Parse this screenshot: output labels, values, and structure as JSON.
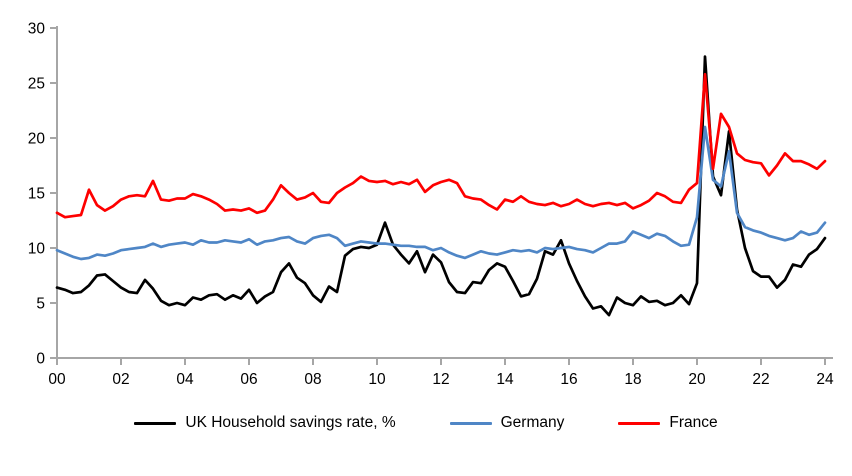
{
  "chart_data": {
    "type": "line",
    "title": "",
    "frequency": "quarterly",
    "x_start_label": "2000 Q1",
    "x_end_label": "2024 Q1",
    "x_axis": {
      "tick_labels": [
        "00",
        "02",
        "04",
        "06",
        "08",
        "10",
        "12",
        "14",
        "16",
        "18",
        "20",
        "22",
        "24"
      ],
      "tick_indices": [
        0,
        8,
        16,
        24,
        32,
        40,
        48,
        56,
        64,
        72,
        80,
        88,
        96
      ]
    },
    "y_axis": {
      "ticks": [
        0,
        5,
        10,
        15,
        20,
        25,
        30
      ],
      "min": 0,
      "max": 30
    },
    "grid": false,
    "legend_position": "bottom",
    "axis_color": "#a6a6a6",
    "label_color": "#000000",
    "series": [
      {
        "name": "UK Household savings rate, %",
        "color": "#000000",
        "values": [
          6.4,
          6.2,
          5.9,
          6.0,
          6.6,
          7.5,
          7.6,
          7.0,
          6.4,
          6.0,
          5.9,
          7.1,
          6.3,
          5.2,
          4.8,
          5.0,
          4.8,
          5.5,
          5.3,
          5.7,
          5.8,
          5.3,
          5.7,
          5.4,
          6.2,
          5.0,
          5.6,
          6.0,
          7.8,
          8.6,
          7.3,
          6.8,
          5.7,
          5.1,
          6.5,
          6.0,
          9.3,
          9.9,
          10.1,
          10.0,
          10.3,
          12.3,
          10.3,
          9.4,
          8.6,
          9.7,
          7.8,
          9.4,
          8.7,
          6.9,
          6.0,
          5.9,
          6.9,
          6.8,
          8.0,
          8.6,
          8.3,
          7.0,
          5.6,
          5.8,
          7.2,
          9.7,
          9.4,
          10.7,
          8.6,
          7.0,
          5.6,
          4.5,
          4.7,
          3.9,
          5.5,
          5.0,
          4.8,
          5.6,
          5.1,
          5.2,
          4.8,
          5.0,
          5.7,
          4.9,
          6.8,
          27.4,
          16.5,
          14.8,
          20.6,
          13.5,
          10.0,
          7.9,
          7.4,
          7.4,
          6.4,
          7.1,
          8.5,
          8.3,
          9.4,
          9.9,
          10.9
        ]
      },
      {
        "name": "Germany",
        "color": "#4f86c6",
        "values": [
          9.8,
          9.5,
          9.2,
          9.0,
          9.1,
          9.4,
          9.3,
          9.5,
          9.8,
          9.9,
          10.0,
          10.1,
          10.4,
          10.1,
          10.3,
          10.4,
          10.5,
          10.3,
          10.7,
          10.5,
          10.5,
          10.7,
          10.6,
          10.5,
          10.8,
          10.3,
          10.6,
          10.7,
          10.9,
          11.0,
          10.6,
          10.4,
          10.9,
          11.1,
          11.2,
          10.9,
          10.2,
          10.4,
          10.6,
          10.5,
          10.4,
          10.4,
          10.3,
          10.2,
          10.2,
          10.1,
          10.1,
          9.8,
          10.0,
          9.6,
          9.3,
          9.1,
          9.4,
          9.7,
          9.5,
          9.4,
          9.6,
          9.8,
          9.7,
          9.8,
          9.6,
          10.0,
          9.9,
          10.0,
          10.1,
          9.9,
          9.8,
          9.6,
          10.0,
          10.4,
          10.4,
          10.6,
          11.5,
          11.2,
          10.9,
          11.3,
          11.1,
          10.6,
          10.2,
          10.3,
          12.8,
          21.0,
          16.2,
          15.6,
          18.8,
          13.2,
          11.9,
          11.6,
          11.4,
          11.1,
          10.9,
          10.7,
          10.9,
          11.5,
          11.2,
          11.4,
          12.3
        ]
      },
      {
        "name": "France",
        "color": "#fe0000",
        "values": [
          13.2,
          12.8,
          12.9,
          13.0,
          15.3,
          13.9,
          13.4,
          13.8,
          14.4,
          14.7,
          14.8,
          14.7,
          16.1,
          14.4,
          14.3,
          14.5,
          14.5,
          14.9,
          14.7,
          14.4,
          14.0,
          13.4,
          13.5,
          13.4,
          13.6,
          13.2,
          13.4,
          14.4,
          15.7,
          15.0,
          14.4,
          14.6,
          15.0,
          14.2,
          14.1,
          15.0,
          15.5,
          15.9,
          16.5,
          16.1,
          16.0,
          16.1,
          15.8,
          16.0,
          15.8,
          16.2,
          15.1,
          15.7,
          16.0,
          16.2,
          15.9,
          14.7,
          14.5,
          14.4,
          13.9,
          13.5,
          14.4,
          14.2,
          14.7,
          14.2,
          14.0,
          13.9,
          14.1,
          13.8,
          14.0,
          14.4,
          14.0,
          13.8,
          14.0,
          14.1,
          13.9,
          14.1,
          13.6,
          13.9,
          14.3,
          15.0,
          14.7,
          14.2,
          14.1,
          15.3,
          15.9,
          25.8,
          17.2,
          22.2,
          21.0,
          18.6,
          18.0,
          17.8,
          17.7,
          16.6,
          17.5,
          18.6,
          17.9,
          17.9,
          17.6,
          17.2,
          17.9
        ]
      }
    ]
  }
}
